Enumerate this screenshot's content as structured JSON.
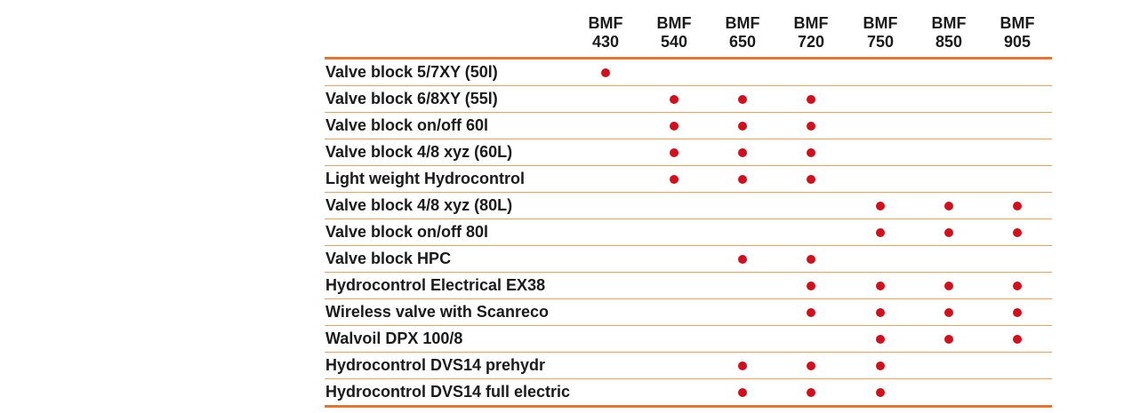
{
  "columns": [
    {
      "line1": "BMF",
      "line2": "430"
    },
    {
      "line1": "BMF",
      "line2": "540"
    },
    {
      "line1": "BMF",
      "line2": "650"
    },
    {
      "line1": "BMF",
      "line2": "720"
    },
    {
      "line1": "BMF",
      "line2": "750"
    },
    {
      "line1": "BMF",
      "line2": "850"
    },
    {
      "line1": "BMF",
      "line2": "905"
    }
  ],
  "rows": [
    {
      "label": "Valve block 5/7XY (50l)",
      "marks": [
        1,
        0,
        0,
        0,
        0,
        0,
        0
      ]
    },
    {
      "label": "Valve block 6/8XY (55l)",
      "marks": [
        0,
        1,
        1,
        1,
        0,
        0,
        0
      ]
    },
    {
      "label": "Valve block on/off 60l",
      "marks": [
        0,
        1,
        1,
        1,
        0,
        0,
        0
      ]
    },
    {
      "label": "Valve block 4/8 xyz (60L)",
      "marks": [
        0,
        1,
        1,
        1,
        0,
        0,
        0
      ]
    },
    {
      "label": "Light weight Hydrocontrol",
      "marks": [
        0,
        1,
        1,
        1,
        0,
        0,
        0
      ]
    },
    {
      "label": "Valve block 4/8 xyz (80L)",
      "marks": [
        0,
        0,
        0,
        0,
        1,
        1,
        1
      ]
    },
    {
      "label": "Valve block on/off 80l",
      "marks": [
        0,
        0,
        0,
        0,
        1,
        1,
        1
      ]
    },
    {
      "label": "Valve block HPC",
      "marks": [
        0,
        0,
        1,
        1,
        0,
        0,
        0
      ]
    },
    {
      "label": "Hydrocontrol Electrical EX38",
      "marks": [
        0,
        0,
        0,
        1,
        1,
        1,
        1
      ]
    },
    {
      "label": "Wireless valve with Scanreco",
      "marks": [
        0,
        0,
        0,
        1,
        1,
        1,
        1
      ]
    },
    {
      "label": "Walvoil DPX 100/8",
      "marks": [
        0,
        0,
        0,
        0,
        1,
        1,
        1
      ]
    },
    {
      "label": "Hydrocontrol DVS14 prehydr",
      "marks": [
        0,
        0,
        1,
        1,
        1,
        0,
        0
      ]
    },
    {
      "label": "Hydrocontrol DVS14 full electric",
      "marks": [
        0,
        0,
        1,
        1,
        1,
        0,
        0
      ]
    }
  ],
  "colors": {
    "accent_line": "#d9793a",
    "row_line": "#d9a66a",
    "dot": "#d0101d"
  }
}
